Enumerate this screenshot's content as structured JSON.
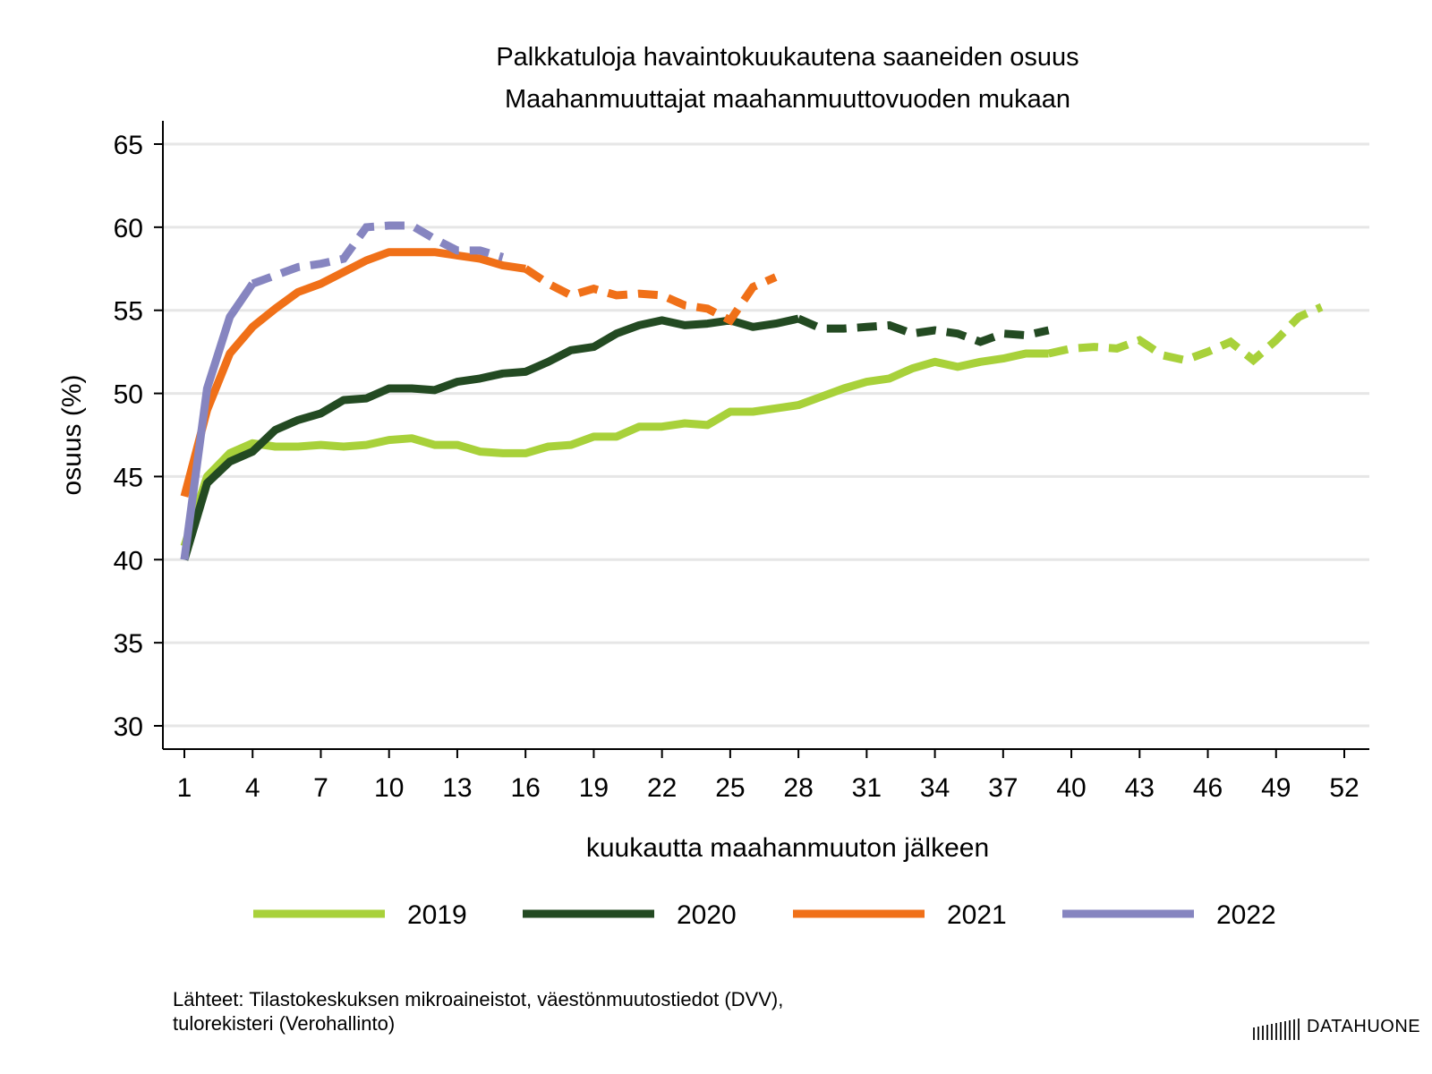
{
  "chart_data": {
    "type": "line",
    "title": "Palkkatuloja havaintokuukautena saaneiden osuus",
    "subtitle": "Maahanmuuttajat maahanmuuttovuoden mukaan",
    "xlabel": "kuukautta maahanmuuton jälkeen",
    "ylabel": "osuus (%)",
    "xlim": [
      1,
      52
    ],
    "ylim": [
      30,
      65
    ],
    "xticks": [
      1,
      4,
      7,
      10,
      13,
      16,
      19,
      22,
      25,
      28,
      31,
      34,
      37,
      40,
      43,
      46,
      49,
      52
    ],
    "yticks": [
      30,
      35,
      40,
      45,
      50,
      55,
      60,
      65
    ],
    "grid": true,
    "legend_position": "bottom",
    "series": [
      {
        "name": "2019",
        "color": "#a8d13a",
        "solid_until": 39,
        "x": [
          1,
          2,
          3,
          4,
          5,
          6,
          7,
          8,
          9,
          10,
          11,
          12,
          13,
          14,
          15,
          16,
          17,
          18,
          19,
          20,
          21,
          22,
          23,
          24,
          25,
          26,
          27,
          28,
          29,
          30,
          31,
          32,
          33,
          34,
          35,
          36,
          37,
          38,
          39,
          40,
          41,
          42,
          43,
          44,
          45,
          46,
          47,
          48,
          49,
          50,
          51
        ],
        "values": [
          40.8,
          45.0,
          46.4,
          47.0,
          46.8,
          46.8,
          46.9,
          46.8,
          46.9,
          47.2,
          47.3,
          46.9,
          46.9,
          46.5,
          46.4,
          46.4,
          46.8,
          46.9,
          47.4,
          47.4,
          48.0,
          48.0,
          48.2,
          48.1,
          48.9,
          48.9,
          49.1,
          49.3,
          49.8,
          50.3,
          50.7,
          50.9,
          51.5,
          51.9,
          51.6,
          51.9,
          52.1,
          52.4,
          52.4,
          52.7,
          52.8,
          52.7,
          53.2,
          52.3,
          52.0,
          52.5,
          53.1,
          52.0,
          53.2,
          54.6,
          55.2
        ]
      },
      {
        "name": "2020",
        "color": "#234a22",
        "solid_until": 28,
        "x": [
          1,
          2,
          3,
          4,
          5,
          6,
          7,
          8,
          9,
          10,
          11,
          12,
          13,
          14,
          15,
          16,
          17,
          18,
          19,
          20,
          21,
          22,
          23,
          24,
          25,
          26,
          27,
          28,
          29,
          30,
          31,
          32,
          33,
          34,
          35,
          36,
          37,
          38,
          39
        ],
        "values": [
          40.0,
          44.6,
          45.9,
          46.5,
          47.8,
          48.4,
          48.8,
          49.6,
          49.7,
          50.3,
          50.3,
          50.2,
          50.7,
          50.9,
          51.2,
          51.3,
          51.9,
          52.6,
          52.8,
          53.6,
          54.1,
          54.4,
          54.1,
          54.2,
          54.4,
          54.0,
          54.2,
          54.5,
          53.9,
          53.9,
          54.0,
          54.1,
          53.6,
          53.8,
          53.6,
          53.1,
          53.6,
          53.5,
          53.8
        ]
      },
      {
        "name": "2021",
        "color": "#f07018",
        "solid_until": 16,
        "x": [
          1,
          2,
          3,
          4,
          5,
          6,
          7,
          8,
          9,
          10,
          11,
          12,
          13,
          14,
          15,
          16,
          17,
          18,
          19,
          20,
          21,
          22,
          23,
          24,
          25,
          26,
          27
        ],
        "values": [
          43.8,
          49.0,
          52.4,
          54.0,
          55.1,
          56.1,
          56.6,
          57.3,
          58.0,
          58.5,
          58.5,
          58.5,
          58.3,
          58.1,
          57.7,
          57.5,
          56.6,
          55.9,
          56.3,
          55.9,
          56.0,
          55.9,
          55.3,
          55.1,
          54.4,
          56.4,
          57.0
        ]
      },
      {
        "name": "2022",
        "color": "#8685c0",
        "solid_until": 4,
        "x": [
          1,
          2,
          3,
          4,
          5,
          6,
          7,
          8,
          9,
          10,
          11,
          12,
          13,
          14,
          15
        ],
        "values": [
          40.0,
          50.3,
          54.6,
          56.6,
          57.1,
          57.6,
          57.8,
          58.1,
          60.0,
          60.1,
          60.1,
          59.3,
          58.6,
          58.6,
          58.2
        ]
      }
    ]
  },
  "footer": {
    "source_line1": "Lähteet: Tilastokeskuksen mikroaineistot, väestönmuutostiedot (DVV),",
    "source_line2": "tulorekisteri (Verohallinto)"
  },
  "logo": {
    "text": "DATAHUONE"
  }
}
